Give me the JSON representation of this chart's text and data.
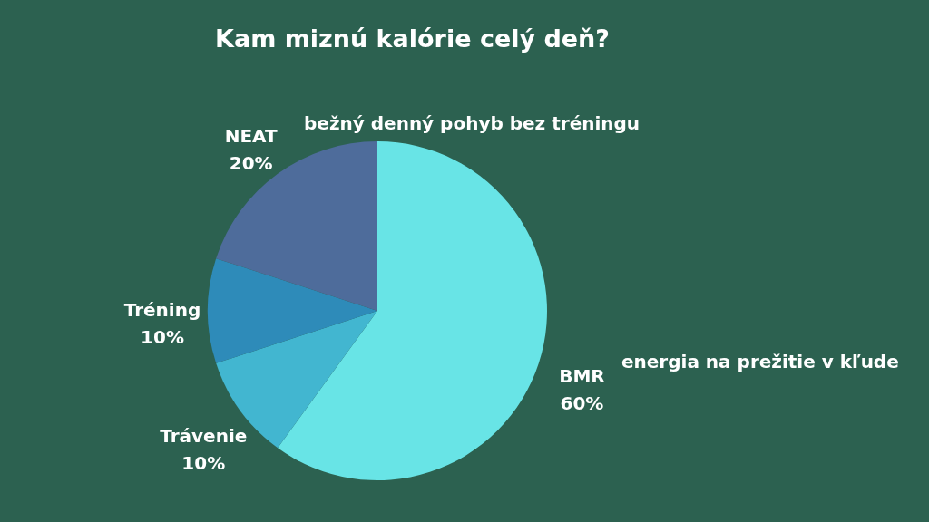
{
  "chart_data": {
    "type": "pie",
    "title": "Kam miznú kalórie celý deň?",
    "categories": [
      "BMR",
      "Trávenie",
      "Tréning",
      "NEAT"
    ],
    "values": [
      60,
      10,
      10,
      20
    ],
    "value_labels": [
      "60%",
      "10%",
      "10%",
      "20%"
    ],
    "colors": [
      "#68e4e6",
      "#42b6d0",
      "#2e8bb9",
      "#4e6c9b"
    ],
    "annotations": [
      "energia na prežitie v kľude",
      "bežný denný pohyb bez tréningu"
    ],
    "legend": false
  }
}
